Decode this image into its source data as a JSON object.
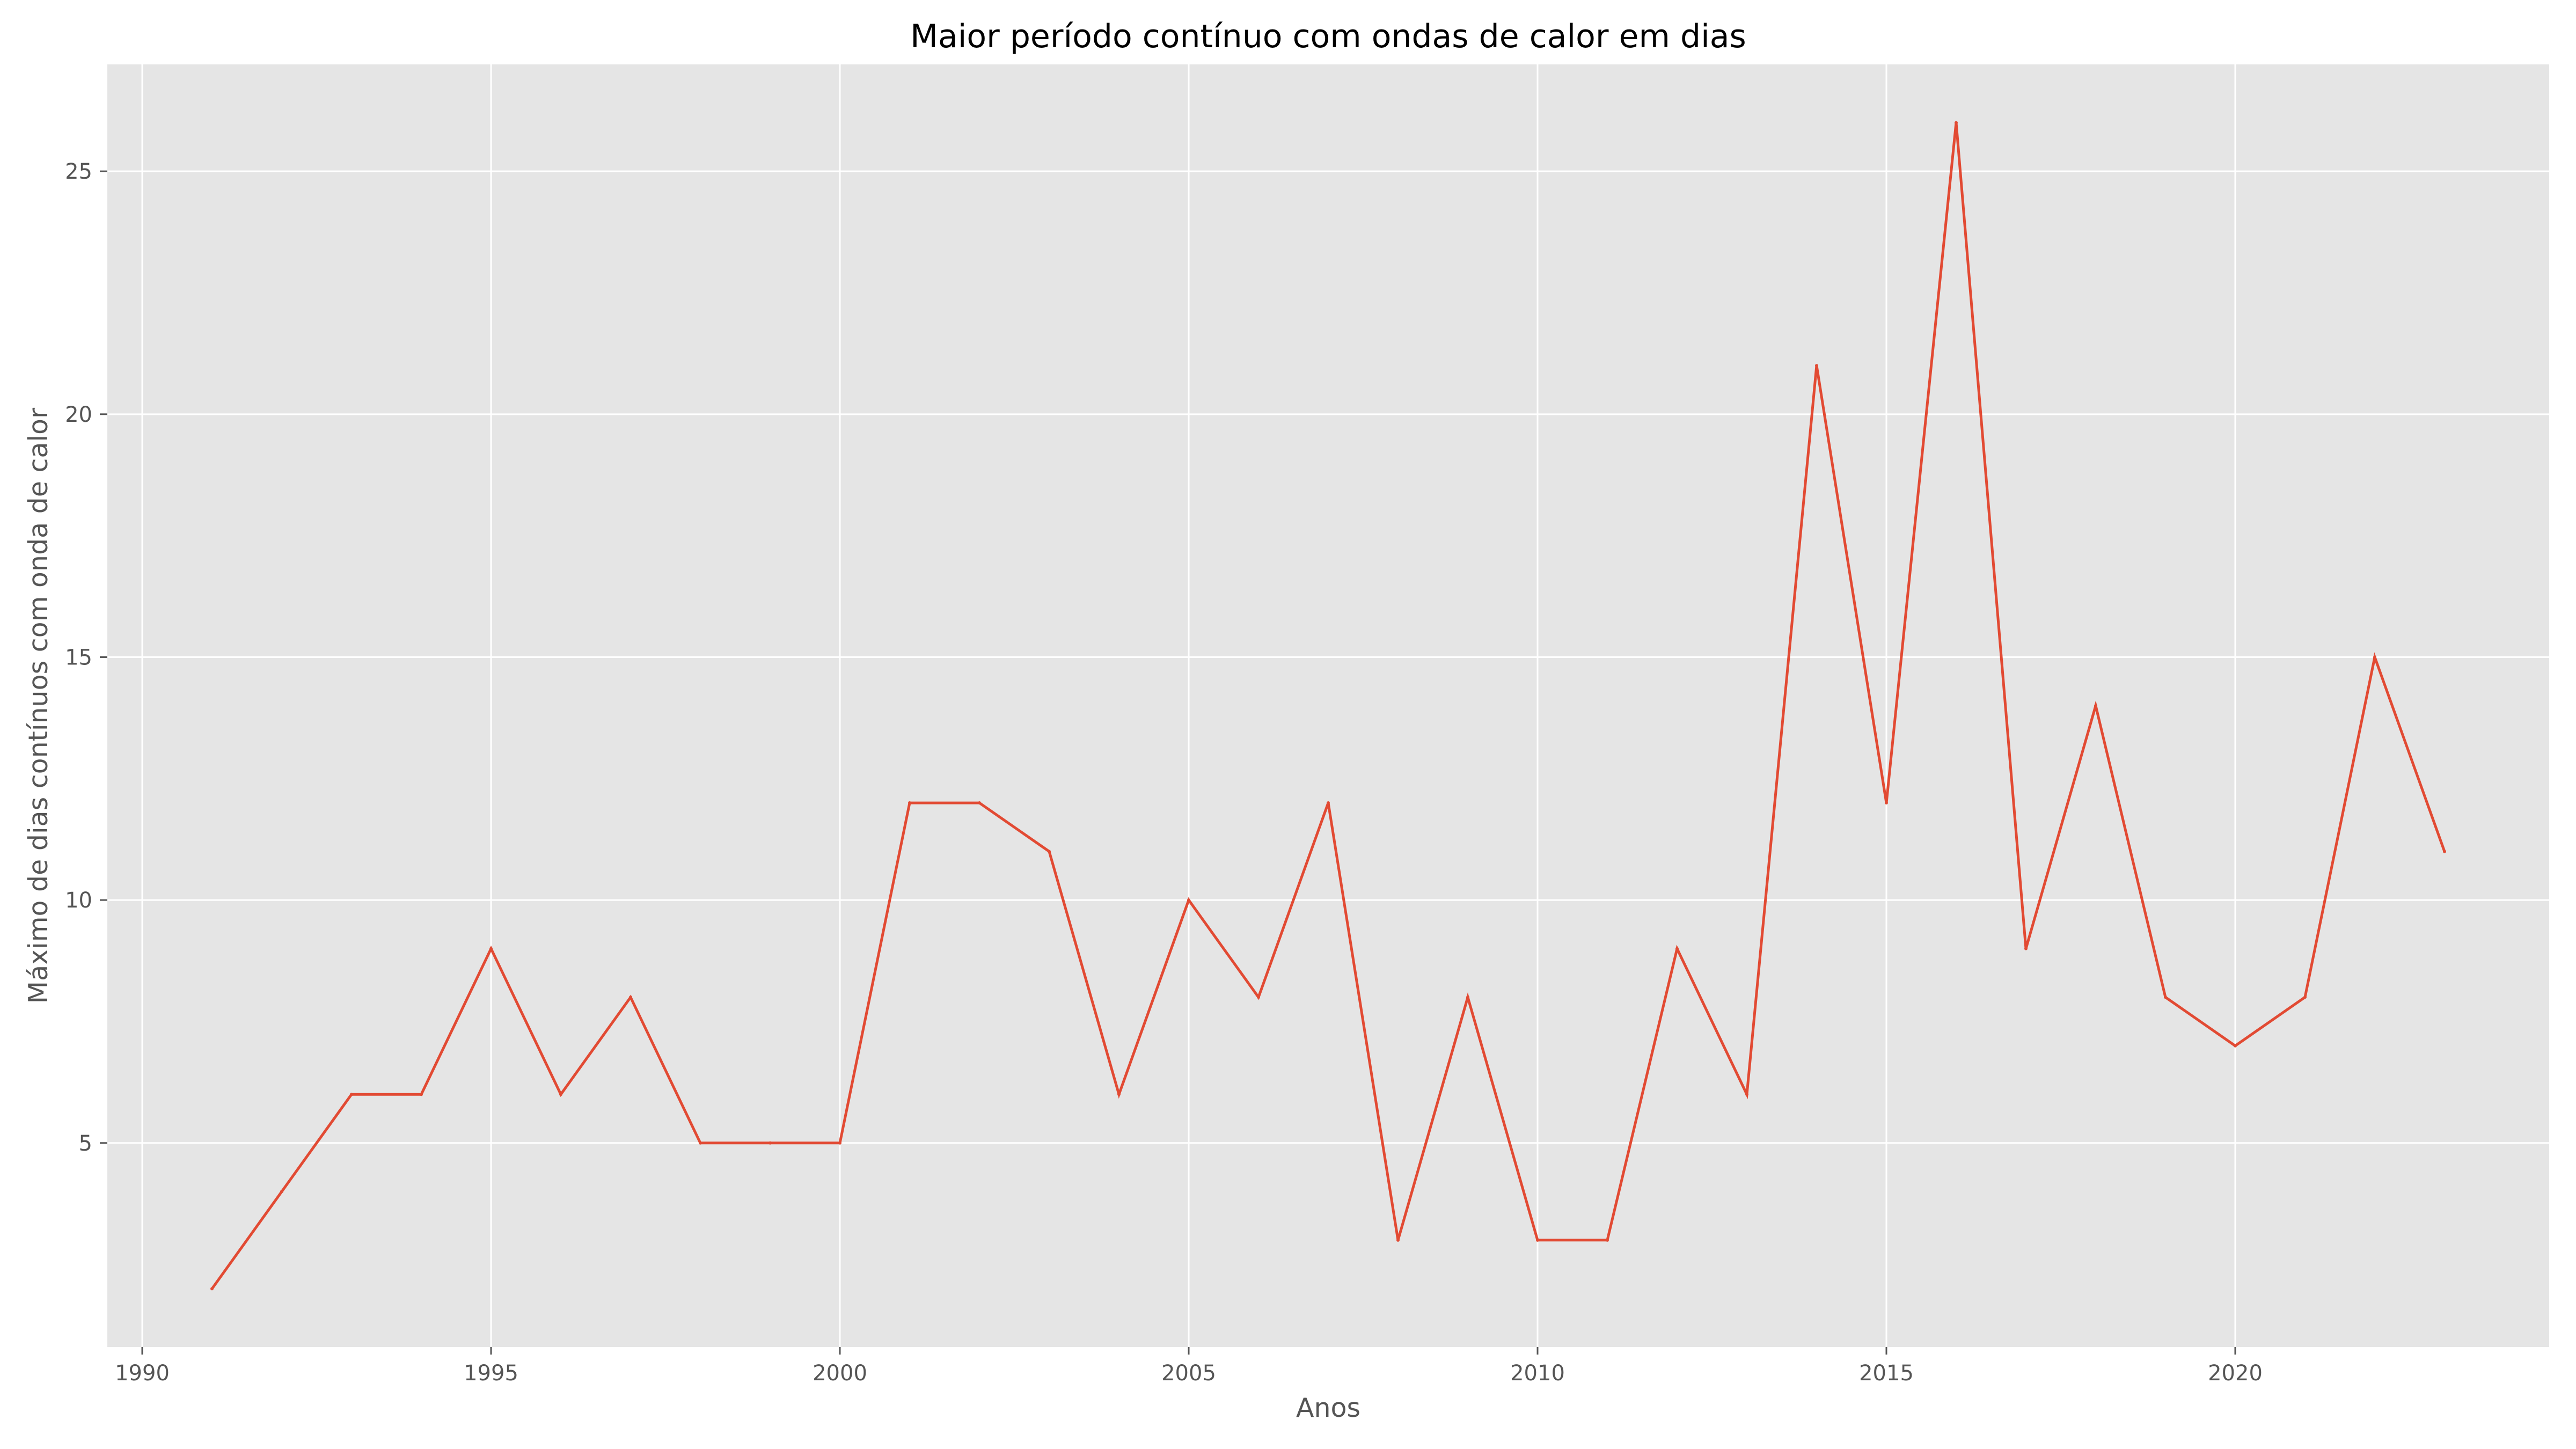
{
  "chart_data": {
    "type": "line",
    "title": "Maior período contínuo com ondas de calor em dias",
    "xlabel": "Anos",
    "ylabel": "Máximo de dias contínuos com onda de calor",
    "xlim": [
      1989.5,
      2024.5
    ],
    "ylim": [
      0.8,
      27.2
    ],
    "xticks": [
      1990,
      1995,
      2000,
      2005,
      2010,
      2015,
      2020
    ],
    "yticks": [
      5,
      10,
      15,
      20,
      25
    ],
    "grid": true,
    "style": "ggplot",
    "series": [
      {
        "color": "#E24A33",
        "x": [
          1991,
          1992,
          1993,
          1994,
          1995,
          1996,
          1997,
          1998,
          1999,
          2000,
          2001,
          2002,
          2003,
          2004,
          2005,
          2006,
          2007,
          2008,
          2009,
          2010,
          2011,
          2012,
          2013,
          2014,
          2015,
          2016,
          2017,
          2018,
          2019,
          2020,
          2021,
          2022,
          2023
        ],
        "y": [
          2,
          4,
          6,
          6,
          9,
          6,
          8,
          5,
          5,
          5,
          12,
          12,
          11,
          6,
          10,
          8,
          12,
          3,
          8,
          3,
          3,
          9,
          6,
          21,
          12,
          26,
          9,
          14,
          8,
          7,
          8,
          15,
          11
        ]
      }
    ]
  },
  "colors": {
    "plot_background": "#E5E5E5",
    "grid": "#FFFFFF",
    "line": "#E24A33"
  }
}
